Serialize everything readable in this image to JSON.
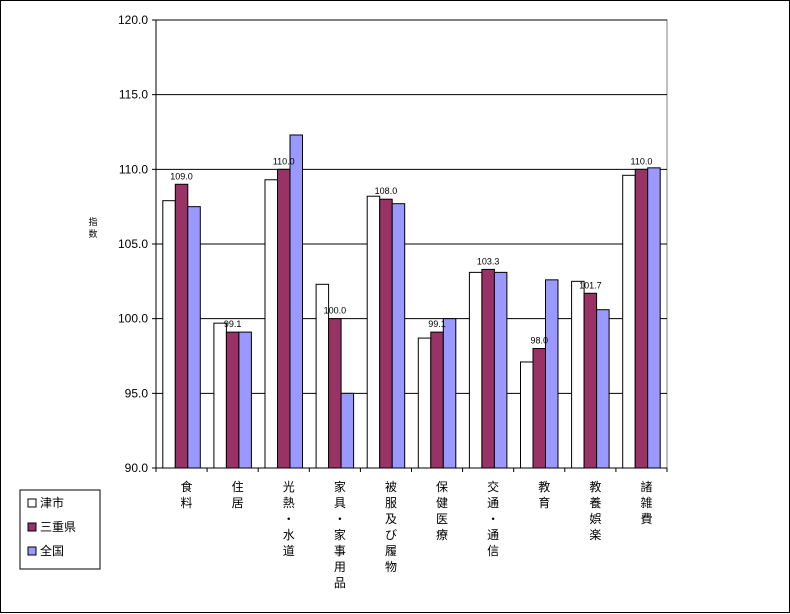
{
  "chart_data": {
    "type": "bar",
    "ylabel": "指数",
    "ylim": [
      90,
      120
    ],
    "ytick_step": 5,
    "yticks": [
      "90.0",
      "95.0",
      "100.0",
      "105.0",
      "110.0",
      "115.0",
      "120.0"
    ],
    "grid": true,
    "legend_position": "bottom-left",
    "categories": [
      "食料",
      "住居",
      "光熱・水道",
      "家具・家事用品",
      "被服及び履物",
      "保健医療",
      "交通・通信",
      "教育",
      "教養娯楽",
      "諸雑費"
    ],
    "series": [
      {
        "name": "津市",
        "color": "#ffffff",
        "values": [
          107.9,
          99.7,
          109.3,
          102.3,
          108.2,
          98.7,
          103.1,
          97.1,
          102.5,
          109.6
        ]
      },
      {
        "name": "三重県",
        "color": "#993366",
        "values": [
          109.0,
          99.1,
          110.0,
          100.0,
          108.0,
          99.1,
          103.3,
          98.0,
          101.7,
          110.0
        ]
      },
      {
        "name": "全国",
        "color": "#9999ff",
        "values": [
          107.5,
          99.1,
          112.3,
          95.0,
          107.7,
          100.0,
          103.1,
          102.6,
          100.6,
          110.1
        ]
      }
    ],
    "data_labels": {
      "series": "三重県",
      "values": [
        "109.0",
        "99.1",
        "110.0",
        "100.0",
        "108.0",
        "99.1",
        "103.3",
        "98.0",
        "101.7",
        "110.0"
      ]
    }
  }
}
